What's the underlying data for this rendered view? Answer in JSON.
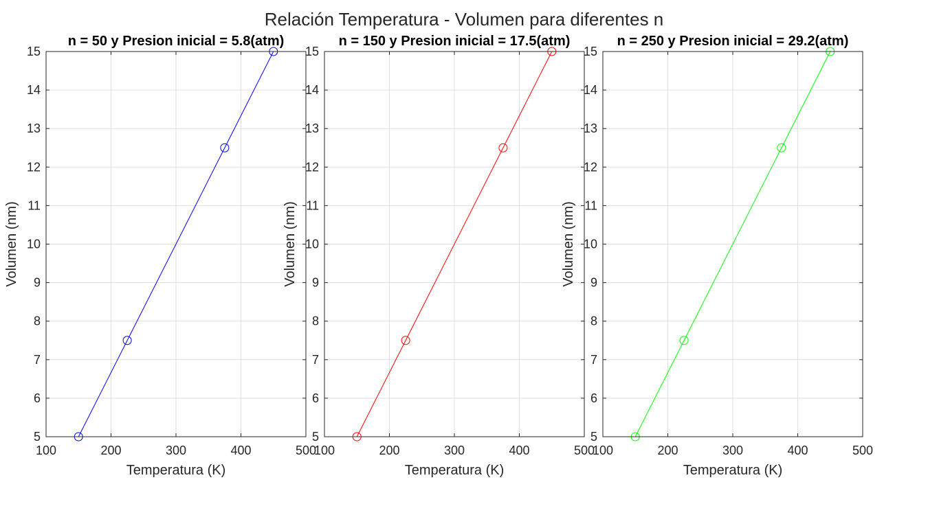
{
  "figure": {
    "title": "Relación Temperatura - Volumen para diferentes n"
  },
  "chart_data": [
    {
      "type": "line",
      "title": "n = 50 y Presion inicial = 5.8(atm)",
      "xlabel": "Temperatura (K)",
      "ylabel": "Volumen (nm)",
      "xlim": [
        100,
        500
      ],
      "ylim": [
        5,
        15
      ],
      "xticks": [
        100,
        200,
        300,
        400,
        500
      ],
      "yticks": [
        5,
        6,
        7,
        8,
        9,
        10,
        11,
        12,
        13,
        14,
        15
      ],
      "grid": true,
      "color": "#0000ff",
      "marker": "circle",
      "series": [
        {
          "x": [
            150,
            225,
            375,
            450
          ],
          "y": [
            5,
            7.5,
            12.5,
            15
          ]
        }
      ]
    },
    {
      "type": "line",
      "title": "n = 150 y Presion inicial = 17.5(atm)",
      "xlabel": "Temperatura (K)",
      "ylabel": "Volumen (nm)",
      "xlim": [
        100,
        500
      ],
      "ylim": [
        5,
        15
      ],
      "xticks": [
        100,
        200,
        300,
        400,
        500
      ],
      "yticks": [
        5,
        6,
        7,
        8,
        9,
        10,
        11,
        12,
        13,
        14,
        15
      ],
      "grid": true,
      "color": "#ff0000",
      "marker": "circle",
      "series": [
        {
          "x": [
            150,
            225,
            375,
            450
          ],
          "y": [
            5,
            7.5,
            12.5,
            15
          ]
        }
      ]
    },
    {
      "type": "line",
      "title": "n = 250 y Presion inicial = 29.2(atm)",
      "xlabel": "Temperatura (K)",
      "ylabel": "Volumen (nm)",
      "xlim": [
        100,
        500
      ],
      "ylim": [
        5,
        15
      ],
      "xticks": [
        100,
        200,
        300,
        400,
        500
      ],
      "yticks": [
        5,
        6,
        7,
        8,
        9,
        10,
        11,
        12,
        13,
        14,
        15
      ],
      "grid": true,
      "color": "#00ff00",
      "marker": "circle",
      "series": [
        {
          "x": [
            150,
            225,
            375,
            450
          ],
          "y": [
            5,
            7.5,
            12.5,
            15
          ]
        }
      ]
    }
  ]
}
